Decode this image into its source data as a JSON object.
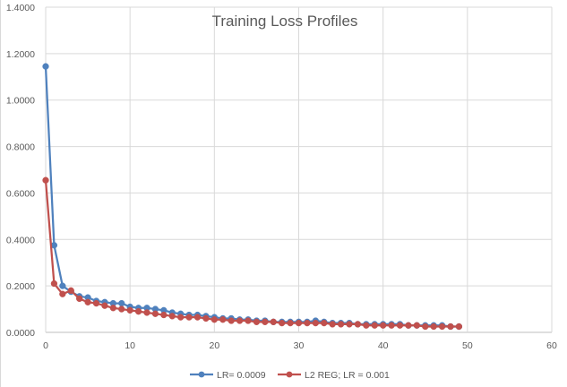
{
  "chart_data": {
    "type": "line",
    "title": "Training Loss Profiles",
    "xlabel": "",
    "ylabel": "",
    "xlim": [
      0,
      60
    ],
    "ylim": [
      0,
      1.4
    ],
    "x_ticks": [
      "0",
      "10",
      "20",
      "30",
      "40",
      "50",
      "60"
    ],
    "y_ticks": [
      "0.0000",
      "0.2000",
      "0.4000",
      "0.6000",
      "0.8000",
      "1.0000",
      "1.2000",
      "1.4000"
    ],
    "grid": true,
    "legend_position": "bottom",
    "x": [
      0,
      1,
      2,
      3,
      4,
      5,
      6,
      7,
      8,
      9,
      10,
      11,
      12,
      13,
      14,
      15,
      16,
      17,
      18,
      19,
      20,
      21,
      22,
      23,
      24,
      25,
      26,
      27,
      28,
      29,
      30,
      31,
      32,
      33,
      34,
      35,
      36,
      37,
      38,
      39,
      40,
      41,
      42,
      43,
      44,
      45,
      46,
      47,
      48,
      49
    ],
    "series": [
      {
        "name": "LR= 0.0009",
        "color": "#4f81bd",
        "values": [
          1.145,
          0.375,
          0.2,
          0.175,
          0.155,
          0.15,
          0.135,
          0.13,
          0.125,
          0.125,
          0.11,
          0.105,
          0.105,
          0.1,
          0.095,
          0.085,
          0.08,
          0.075,
          0.075,
          0.07,
          0.065,
          0.06,
          0.06,
          0.055,
          0.055,
          0.05,
          0.05,
          0.045,
          0.045,
          0.045,
          0.045,
          0.045,
          0.05,
          0.045,
          0.04,
          0.04,
          0.04,
          0.035,
          0.035,
          0.035,
          0.035,
          0.035,
          0.035,
          0.03,
          0.03,
          0.03,
          0.03,
          0.03,
          0.025,
          0.025
        ]
      },
      {
        "name": "L2 REG; LR = 0.001",
        "color": "#c0504d",
        "values": [
          0.655,
          0.21,
          0.165,
          0.18,
          0.145,
          0.13,
          0.125,
          0.115,
          0.105,
          0.1,
          0.095,
          0.09,
          0.085,
          0.08,
          0.075,
          0.07,
          0.065,
          0.065,
          0.065,
          0.06,
          0.055,
          0.055,
          0.05,
          0.05,
          0.05,
          0.045,
          0.045,
          0.045,
          0.04,
          0.04,
          0.04,
          0.04,
          0.04,
          0.04,
          0.035,
          0.035,
          0.035,
          0.035,
          0.03,
          0.03,
          0.03,
          0.03,
          0.03,
          0.03,
          0.03,
          0.025,
          0.025,
          0.025,
          0.025,
          0.025
        ]
      }
    ]
  }
}
